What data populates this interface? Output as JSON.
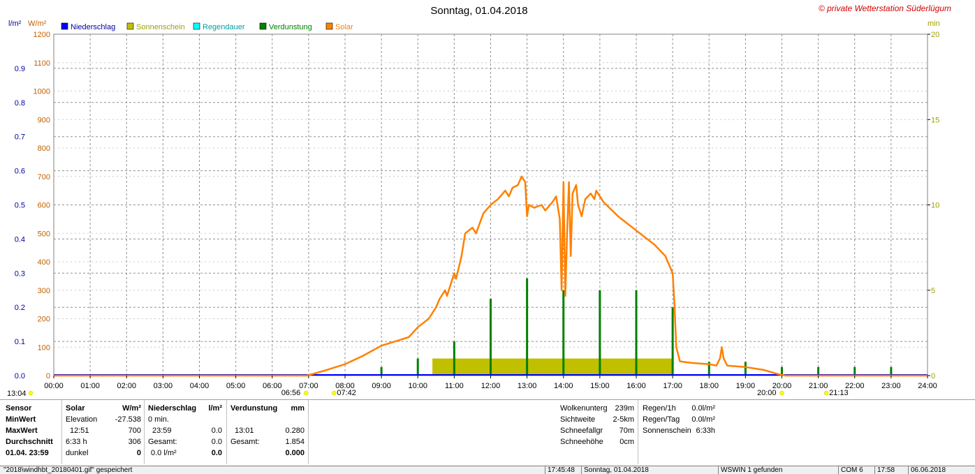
{
  "chart_data": {
    "type": "line",
    "title": "Sonntag, 01.04.2018",
    "credit": "© private Wetterstation Süderlügum",
    "left_axis_units": [
      "l/m²",
      "W/m²"
    ],
    "right_axis_unit": "min",
    "x_ticks": [
      "00:00",
      "01:00",
      "02:00",
      "03:00",
      "04:00",
      "05:00",
      "06:00",
      "07:00",
      "08:00",
      "09:00",
      "10:00",
      "11:00",
      "12:00",
      "13:00",
      "14:00",
      "15:00",
      "16:00",
      "17:00",
      "18:00",
      "19:00",
      "20:00",
      "21:00",
      "22:00",
      "23:00",
      "24:00"
    ],
    "xlim": [
      0,
      24
    ],
    "ylim_solar": [
      0,
      1200
    ],
    "yticks_solar": [
      "0",
      "100",
      "200",
      "300",
      "400",
      "500",
      "600",
      "700",
      "800",
      "900",
      "1000",
      "1100",
      "1200"
    ],
    "ylim_precip": [
      0,
      1.0
    ],
    "yticks_precip": [
      "0.0",
      "0.1",
      "0.2",
      "0.3",
      "0.4",
      "0.5",
      "0.6",
      "0.7",
      "0.8",
      "0.9"
    ],
    "ylim_minutes": [
      0,
      20
    ],
    "yticks_minutes": [
      "0",
      "5",
      "10",
      "15",
      "20"
    ],
    "grid": true,
    "legend": [
      {
        "name": "Niederschlag",
        "color": "#0000ff"
      },
      {
        "name": "Sonnenschein",
        "color": "#c0c000"
      },
      {
        "name": "Regendauer",
        "color": "#00ffff"
      },
      {
        "name": "Verdunstung",
        "color": "#008000"
      },
      {
        "name": "Solar",
        "color": "#ff8000"
      }
    ],
    "colors": {
      "solar": "#ff8000",
      "sunshine": "#c0c000",
      "evap": "#008000",
      "precip": "#0000ff",
      "axis_left_precip": "#0000a0",
      "axis_left_solar": "#c06000",
      "axis_right": "#a0a000"
    },
    "series": [
      {
        "name": "Solar",
        "unit": "W/m²",
        "points": [
          [
            0,
            0
          ],
          [
            6.95,
            0
          ],
          [
            7.1,
            5
          ],
          [
            7.5,
            20
          ],
          [
            8,
            40
          ],
          [
            8.5,
            70
          ],
          [
            9,
            105
          ],
          [
            9.5,
            125
          ],
          [
            9.75,
            135
          ],
          [
            10,
            170
          ],
          [
            10.3,
            200
          ],
          [
            10.5,
            240
          ],
          [
            10.6,
            270
          ],
          [
            10.75,
            300
          ],
          [
            10.8,
            280
          ],
          [
            10.9,
            320
          ],
          [
            11,
            360
          ],
          [
            11.05,
            340
          ],
          [
            11.2,
            420
          ],
          [
            11.3,
            500
          ],
          [
            11.5,
            520
          ],
          [
            11.6,
            500
          ],
          [
            11.8,
            570
          ],
          [
            12,
            600
          ],
          [
            12.2,
            620
          ],
          [
            12.4,
            650
          ],
          [
            12.5,
            630
          ],
          [
            12.6,
            660
          ],
          [
            12.75,
            670
          ],
          [
            12.85,
            700
          ],
          [
            12.95,
            680
          ],
          [
            13,
            560
          ],
          [
            13.05,
            600
          ],
          [
            13.2,
            590
          ],
          [
            13.4,
            600
          ],
          [
            13.5,
            580
          ],
          [
            13.7,
            610
          ],
          [
            13.8,
            630
          ],
          [
            13.9,
            550
          ],
          [
            13.95,
            300
          ],
          [
            14,
            680
          ],
          [
            14.05,
            280
          ],
          [
            14.1,
            500
          ],
          [
            14.15,
            680
          ],
          [
            14.2,
            420
          ],
          [
            14.25,
            640
          ],
          [
            14.35,
            670
          ],
          [
            14.4,
            600
          ],
          [
            14.5,
            560
          ],
          [
            14.6,
            620
          ],
          [
            14.75,
            640
          ],
          [
            14.85,
            620
          ],
          [
            14.9,
            650
          ],
          [
            15,
            630
          ],
          [
            15.1,
            610
          ],
          [
            15.5,
            560
          ],
          [
            16,
            510
          ],
          [
            16.5,
            460
          ],
          [
            16.8,
            420
          ],
          [
            16.9,
            390
          ],
          [
            17,
            360
          ],
          [
            17.05,
            250
          ],
          [
            17.1,
            100
          ],
          [
            17.2,
            50
          ],
          [
            17.5,
            45
          ],
          [
            18,
            40
          ],
          [
            18.2,
            35
          ],
          [
            18.3,
            60
          ],
          [
            18.35,
            100
          ],
          [
            18.4,
            60
          ],
          [
            18.5,
            35
          ],
          [
            19,
            30
          ],
          [
            19.5,
            20
          ],
          [
            19.9,
            5
          ],
          [
            20.1,
            0
          ],
          [
            24,
            0
          ]
        ]
      },
      {
        "name": "Sonnenschein",
        "unit": "min",
        "bars": [
          {
            "from": 10.4,
            "to": 17.0,
            "minutes": 1.0
          }
        ]
      },
      {
        "name": "Verdunstung",
        "unit": "min",
        "bars": [
          [
            9.0,
            0.5
          ],
          [
            10.0,
            1.0
          ],
          [
            11.0,
            2.0
          ],
          [
            12.0,
            4.5
          ],
          [
            13.0,
            5.7
          ],
          [
            14.0,
            5.0
          ],
          [
            15.0,
            5.0
          ],
          [
            16.0,
            5.0
          ],
          [
            17.0,
            4.0
          ],
          [
            18.0,
            0.8
          ],
          [
            19.0,
            0.8
          ],
          [
            20.0,
            0.5
          ],
          [
            21.0,
            0.5
          ],
          [
            22.0,
            0.5
          ],
          [
            23.0,
            0.5
          ]
        ]
      },
      {
        "name": "Niederschlag",
        "unit": "l/m²",
        "values": [
          0
        ]
      }
    ],
    "annotations": [
      {
        "label": "13:04",
        "hour": -0.1
      },
      {
        "label": "06:56",
        "hour": 6.93
      },
      {
        "label": "07:42",
        "hour": 7.7
      },
      {
        "label": "20:00",
        "hour": 20.0
      },
      {
        "label": "21:13",
        "hour": 21.22
      }
    ]
  },
  "stats": {
    "header": {
      "sensor": "Sensor",
      "solar": "Solar",
      "solar_unit": "W/m²",
      "precip": "Niederschlag",
      "precip_unit": "l/m²",
      "evap": "Verdunstung",
      "evap_unit": "mm"
    },
    "row_labels": [
      "MinWert",
      "MaxWert",
      "Durchschnitt",
      "01.04. 23:59"
    ],
    "solar_rows": [
      [
        "Elevation",
        "-27.538"
      ],
      [
        "12:51",
        "700"
      ],
      [
        "6:33 h",
        "306"
      ],
      [
        "dunkel",
        "0"
      ]
    ],
    "precip_rows": [
      [
        "0 min.",
        ""
      ],
      [
        "23:59",
        "0.0"
      ],
      [
        "Gesamt:",
        "0.0"
      ],
      [
        "0.0 l/m²",
        "0.0"
      ]
    ],
    "evap_rows": [
      [
        "",
        ""
      ],
      [
        "13:01",
        "0.280"
      ],
      [
        "Gesamt:",
        "1.854"
      ],
      [
        "",
        "0.000"
      ]
    ],
    "weather": [
      [
        "Wolkenunterg",
        "239m"
      ],
      [
        "Sichtweite",
        "2-5km"
      ],
      [
        "Schneefallgr",
        "70m"
      ],
      [
        "Schneehöhe",
        "0cm"
      ]
    ],
    "rain": [
      [
        "Regen/1h",
        "0.0l/m²"
      ],
      [
        "Regen/Tag",
        "0.0l/m²"
      ],
      [
        "Sonnenschein",
        "6:33h"
      ]
    ]
  },
  "status": [
    "\"2018\\windhbt_20180401.gif\" gespeichert",
    "17:45:48",
    "Sonntag, 01.04.2018",
    "WSWIN 1 gefunden",
    "COM 6",
    "17:58",
    "06.06.2018"
  ]
}
